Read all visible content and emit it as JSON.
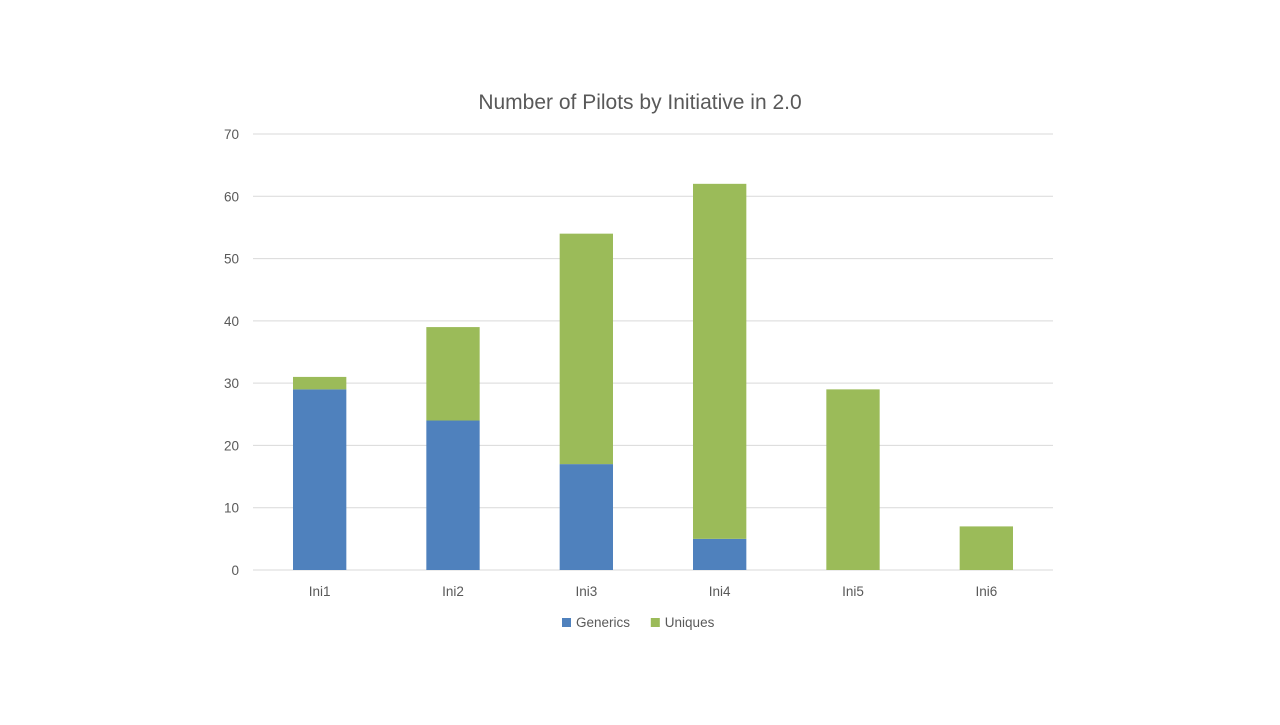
{
  "chart_data": {
    "type": "bar",
    "stacked": true,
    "title": "Number of Pilots by Initiative in 2.0",
    "xlabel": "",
    "ylabel": "",
    "categories": [
      "Ini1",
      "Ini2",
      "Ini3",
      "Ini4",
      "Ini5",
      "Ini6"
    ],
    "series": [
      {
        "name": "Generics",
        "values": [
          29,
          24,
          17,
          5,
          0,
          0
        ],
        "color": "#4f81bd"
      },
      {
        "name": "Uniques",
        "values": [
          2,
          15,
          37,
          57,
          29,
          7
        ],
        "color": "#9bbb59"
      }
    ],
    "ylim": [
      0,
      70
    ],
    "yticks": [
      0,
      10,
      20,
      30,
      40,
      50,
      60,
      70
    ],
    "grid": true,
    "legend_position": "bottom"
  }
}
